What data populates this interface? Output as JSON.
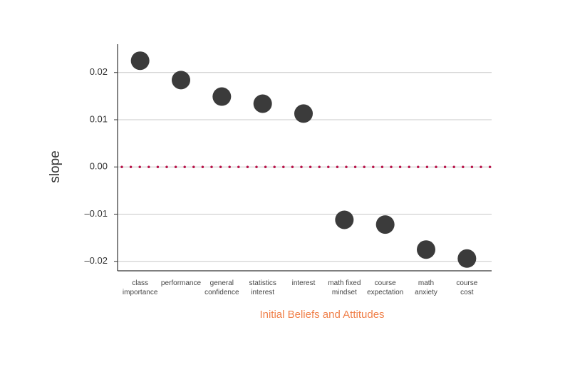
{
  "chart_data": {
    "type": "dot",
    "x_label": "Initial Beliefs and Attitudes",
    "y_label": "slope",
    "categories": [
      [
        "class",
        "importance"
      ],
      [
        "performance"
      ],
      [
        "general",
        "confidence"
      ],
      [
        "statistics",
        "interest"
      ],
      [
        "interest"
      ],
      [
        "math fixed",
        "mindset"
      ],
      [
        "course",
        "expectation"
      ],
      [
        "math",
        "anxiety"
      ],
      [
        "course",
        "cost"
      ]
    ],
    "values": [
      0.0225,
      0.0184,
      0.0149,
      0.0134,
      0.0113,
      -0.0112,
      -0.0122,
      -0.0175,
      -0.0194
    ],
    "color": "#3b3b3b",
    "ylim": [
      -0.022,
      0.026
    ],
    "yticks": [
      {
        "value": -0.02,
        "label": "–0.02"
      },
      {
        "value": -0.01,
        "label": "–0.01"
      },
      {
        "value": 0,
        "label": "0.00"
      },
      0.01,
      0.02
    ],
    "grid": true,
    "reference_line": {
      "value": 0,
      "color": "#b8144a"
    }
  }
}
